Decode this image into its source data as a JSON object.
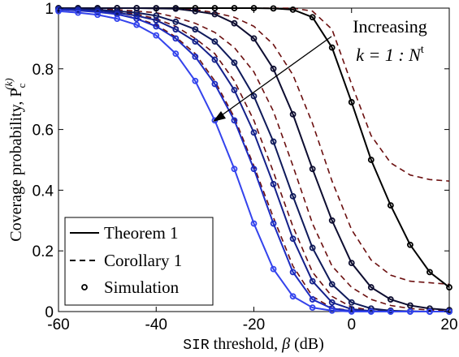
{
  "chart_data": {
    "type": "line",
    "xlabel_mono": "SIR",
    "xlabel_text": " threshold, ",
    "xlabel_symbol": "β",
    "xlabel_unit": " (dB)",
    "ylabel_text": "Coverage probability, ",
    "ylabel_symbol": "P",
    "ylabel_sub": "c",
    "ylabel_sup": "(k)",
    "xlim": [
      -60,
      20
    ],
    "ylim": [
      0,
      1
    ],
    "x_ticks": [
      -60,
      -40,
      -20,
      0,
      20
    ],
    "x_tick_labels": [
      "-60",
      "-40",
      "-20",
      "0",
      "20"
    ],
    "y_ticks": [
      0,
      0.2,
      0.4,
      0.6,
      0.8,
      1
    ],
    "y_tick_labels": [
      "0",
      "0.2",
      "0.4",
      "0.6",
      "0.8",
      "1"
    ],
    "grid": false,
    "legend_position": "bottom-left",
    "legend": {
      "theorem": "Theorem 1",
      "corollary": "Corollary 1",
      "simulation": "Simulation"
    },
    "annotation": {
      "line1": "Increasing",
      "line2_prefix": "k = 1 : N",
      "line2_sup": "t"
    },
    "colors": {
      "k1": "#000000",
      "k2": "#0d0d30",
      "k3": "#0f1a5a",
      "k4": "#14208a",
      "k5": "#1c2bc0",
      "k6": "#3344ee",
      "corollary": "#6b0f0f",
      "corollary_last": "#e02020"
    },
    "x": [
      -60,
      -56,
      -52,
      -48,
      -44,
      -40,
      -36,
      -32,
      -28,
      -24,
      -20,
      -16,
      -12,
      -8,
      -4,
      0,
      4,
      8,
      12,
      16,
      20
    ],
    "series": [
      {
        "theorem": [
          1,
          1,
          1,
          1,
          1,
          1,
          1,
          1,
          1,
          1,
          1,
          0.999,
          0.995,
          0.97,
          0.87,
          0.69,
          0.5,
          0.35,
          0.22,
          0.13,
          0.08
        ],
        "corollary": [
          1,
          1,
          1,
          1,
          1,
          1,
          1,
          1,
          1,
          1,
          1,
          1,
          1,
          0.99,
          0.93,
          0.75,
          0.58,
          0.49,
          0.45,
          0.435,
          0.43
        ],
        "markers": [
          1,
          1,
          1,
          1,
          1,
          1,
          1,
          1,
          1,
          1,
          1,
          0.999,
          0.995,
          0.97,
          0.87,
          0.69,
          0.5,
          0.35,
          0.22,
          0.13,
          0.08
        ]
      },
      {
        "theorem": [
          1,
          1,
          1,
          1,
          1,
          0.999,
          0.998,
          0.99,
          0.98,
          0.95,
          0.9,
          0.8,
          0.65,
          0.47,
          0.3,
          0.16,
          0.08,
          0.04,
          0.02,
          0.01,
          0.005
        ],
        "corollary": [
          1,
          1,
          1,
          1,
          1,
          0.999,
          0.998,
          0.995,
          0.985,
          0.97,
          0.94,
          0.88,
          0.78,
          0.62,
          0.43,
          0.27,
          0.17,
          0.12,
          0.1,
          0.095,
          0.09
        ],
        "markers": [
          1,
          1,
          1,
          1,
          1,
          0.999,
          0.998,
          0.99,
          0.98,
          0.95,
          0.9,
          0.8,
          0.65,
          0.47,
          0.3,
          0.16,
          0.08,
          0.04,
          0.02,
          0.01,
          0.005
        ]
      },
      {
        "theorem": [
          0.998,
          0.997,
          0.995,
          0.99,
          0.985,
          0.975,
          0.955,
          0.93,
          0.89,
          0.82,
          0.71,
          0.56,
          0.38,
          0.21,
          0.09,
          0.03,
          0.01,
          0.003,
          0.001,
          0,
          0
        ],
        "corollary": [
          0.999,
          0.998,
          0.997,
          0.995,
          0.99,
          0.985,
          0.97,
          0.95,
          0.92,
          0.87,
          0.79,
          0.66,
          0.48,
          0.29,
          0.15,
          0.08,
          0.04,
          0.02,
          0.01,
          0.005,
          0.003
        ],
        "markers": [
          0.998,
          0.997,
          0.995,
          0.99,
          0.985,
          0.975,
          0.955,
          0.93,
          0.89,
          0.82,
          0.71,
          0.56,
          0.38,
          0.21,
          0.09,
          0.03,
          0.01,
          0.003,
          0.001,
          0,
          0
        ]
      },
      {
        "theorem": [
          0.997,
          0.995,
          0.992,
          0.985,
          0.975,
          0.96,
          0.93,
          0.89,
          0.83,
          0.73,
          0.59,
          0.42,
          0.24,
          0.1,
          0.03,
          0.008,
          0.002,
          0,
          0,
          0,
          0
        ],
        "corollary": [
          0.997,
          0.995,
          0.993,
          0.988,
          0.98,
          0.965,
          0.94,
          0.9,
          0.85,
          0.76,
          0.63,
          0.46,
          0.28,
          0.13,
          0.05,
          0.015,
          0.004,
          0.001,
          0,
          0,
          0
        ],
        "markers": [
          0.997,
          0.995,
          0.992,
          0.985,
          0.975,
          0.96,
          0.93,
          0.89,
          0.83,
          0.73,
          0.59,
          0.42,
          0.24,
          0.1,
          0.03,
          0.008,
          0.002,
          0,
          0,
          0,
          0
        ]
      },
      {
        "theorem": [
          0.995,
          0.992,
          0.987,
          0.98,
          0.965,
          0.94,
          0.9,
          0.84,
          0.75,
          0.63,
          0.47,
          0.29,
          0.13,
          0.04,
          0.01,
          0.002,
          0,
          0,
          0,
          0,
          0
        ],
        "corollary": [
          0.995,
          0.992,
          0.988,
          0.98,
          0.967,
          0.945,
          0.905,
          0.85,
          0.76,
          0.64,
          0.48,
          0.31,
          0.15,
          0.05,
          0.012,
          0.003,
          0,
          0,
          0,
          0,
          0
        ],
        "markers": [
          0.995,
          0.992,
          0.987,
          0.98,
          0.965,
          0.94,
          0.9,
          0.84,
          0.75,
          0.63,
          0.47,
          0.29,
          0.13,
          0.04,
          0.01,
          0.002,
          0,
          0,
          0,
          0,
          0
        ]
      },
      {
        "theorem": [
          0.99,
          0.985,
          0.978,
          0.965,
          0.945,
          0.91,
          0.85,
          0.76,
          0.63,
          0.47,
          0.29,
          0.14,
          0.05,
          0.013,
          0.003,
          0,
          0,
          0,
          0,
          0,
          0
        ],
        "corollary": [
          0.99,
          0.985,
          0.978,
          0.965,
          0.945,
          0.91,
          0.85,
          0.76,
          0.63,
          0.47,
          0.29,
          0.14,
          0.05,
          0.013,
          0.003,
          0,
          0,
          0,
          0,
          0,
          0
        ],
        "markers": [
          0.99,
          0.985,
          0.978,
          0.965,
          0.945,
          0.91,
          0.85,
          0.76,
          0.63,
          0.47,
          0.29,
          0.14,
          0.05,
          0.013,
          0.003,
          0,
          0,
          0,
          0,
          0,
          0
        ]
      }
    ]
  }
}
